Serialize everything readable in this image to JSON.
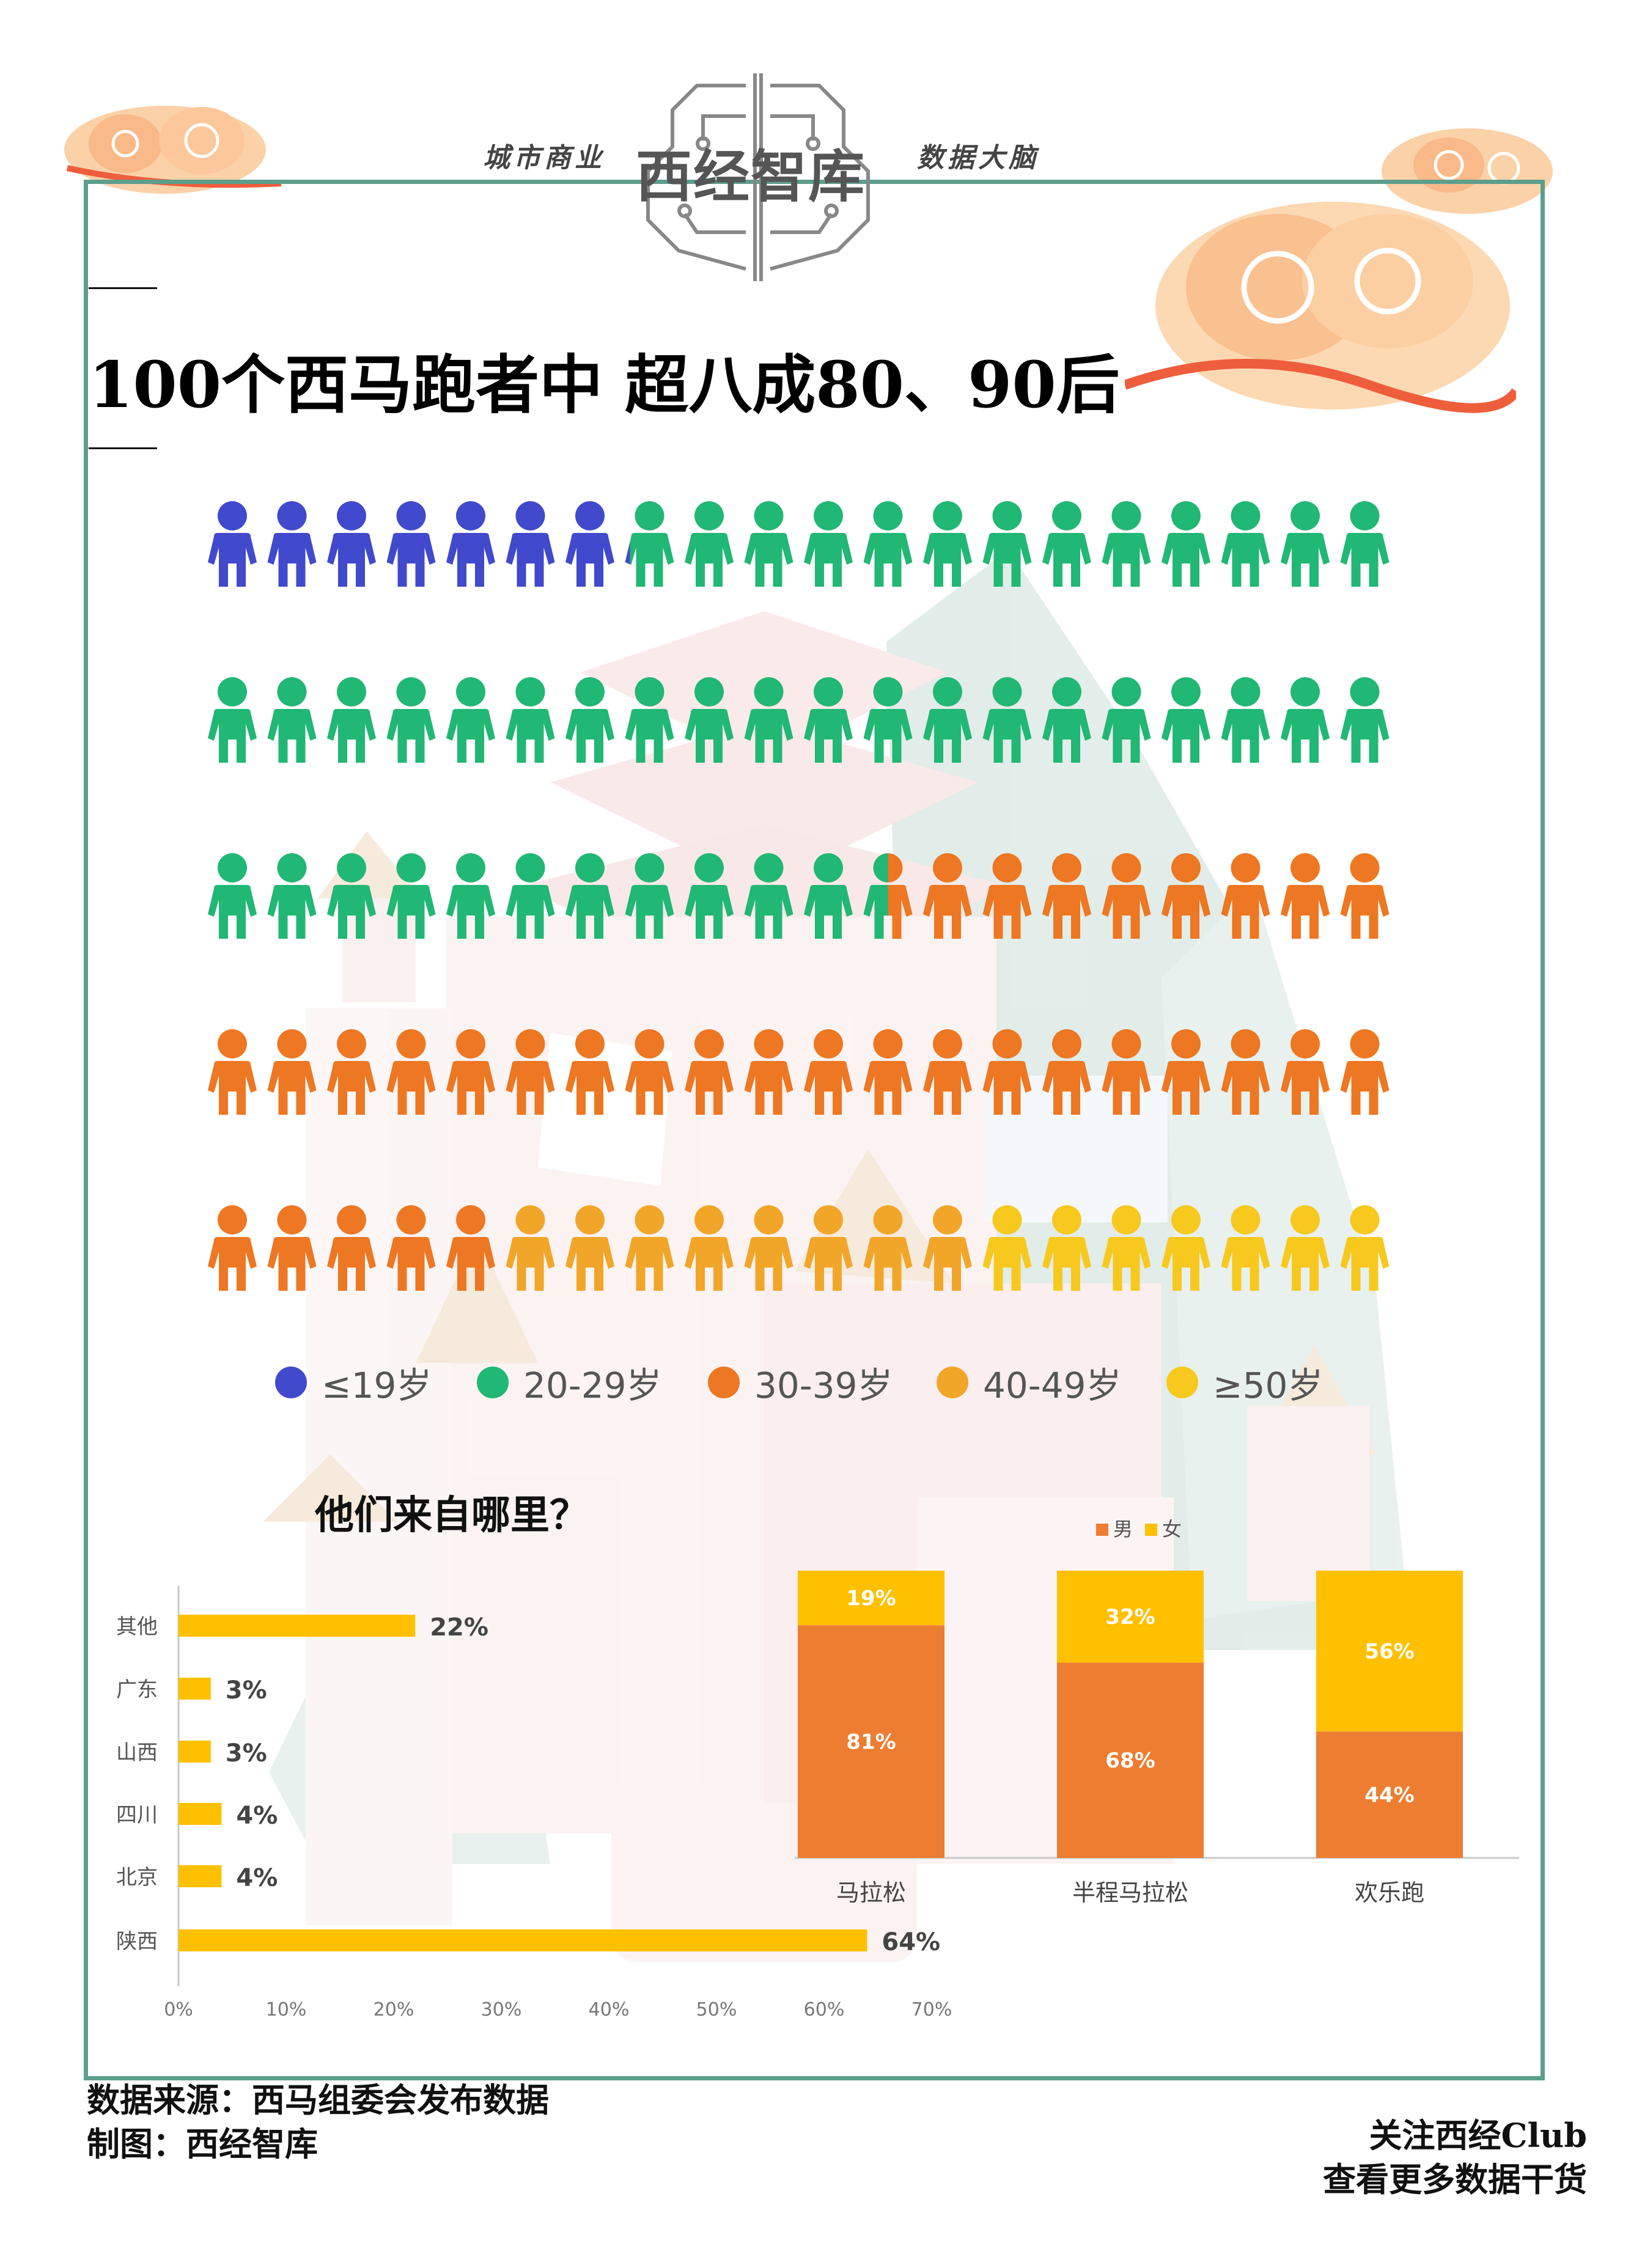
{
  "header": {
    "tag_left": "城市商业",
    "brand": "西经智库",
    "tag_right": "数据大脑"
  },
  "headline": "100个西马跑者中 超八成80、90后",
  "colors": {
    "frame": "#5d9e8c",
    "age_le19": "#4149cc",
    "age_20_29": "#21b774",
    "age_30_39": "#ed7722",
    "age_40_49": "#f2a629",
    "age_ge50": "#f7c81e",
    "bar_yellow": "#ffc000",
    "bar_orange": "#ed7d31"
  },
  "legend": [
    {
      "label": "≤19岁",
      "color": "#4149cc"
    },
    {
      "label": "20-29岁",
      "color": "#21b774"
    },
    {
      "label": "30-39岁",
      "color": "#ed7722"
    },
    {
      "label": "40-49岁",
      "color": "#f2a629"
    },
    {
      "label": "≥50岁",
      "color": "#f7c81e"
    }
  ],
  "origin_title": "他们来自哪里？",
  "chart_data": [
    {
      "type": "pictogram",
      "total": 100,
      "unit_icon": "person-icon",
      "segments": [
        {
          "label": "≤19岁",
          "count": 7.1
        },
        {
          "label": "20-29岁",
          "count": 44.4
        },
        {
          "label": "30-39岁",
          "count": 33.5
        },
        {
          "label": "40-49岁",
          "count": 8
        },
        {
          "label": "≥50岁",
          "count": 7
        }
      ]
    },
    {
      "type": "bar",
      "orientation": "horizontal",
      "categories": [
        "其他",
        "广东",
        "山西",
        "四川",
        "北京",
        "陕西"
      ],
      "values": [
        22,
        3,
        3,
        4,
        4,
        64
      ],
      "value_labels": [
        "22%",
        "3%",
        "3%",
        "4%",
        "4%",
        "64%"
      ],
      "xlim": [
        0,
        70
      ],
      "xticks": [
        "0%",
        "10%",
        "20%",
        "30%",
        "40%",
        "50%",
        "60%",
        "70%"
      ]
    },
    {
      "type": "bar",
      "stacked": true,
      "percent": true,
      "categories": [
        "马拉松",
        "半程马拉松",
        "欢乐跑"
      ],
      "series": [
        {
          "name": "男",
          "values": [
            81,
            68,
            44
          ],
          "labels": [
            "81%",
            "68%",
            "44%"
          ]
        },
        {
          "name": "女",
          "values": [
            19,
            32,
            56
          ],
          "labels": [
            "19%",
            "32%",
            "56%"
          ]
        }
      ]
    }
  ],
  "footer": {
    "source": "数据来源：西马组委会发布数据",
    "made_by": "制图：西经智库",
    "follow": "关注西经Club",
    "more": "查看更多数据干货"
  }
}
